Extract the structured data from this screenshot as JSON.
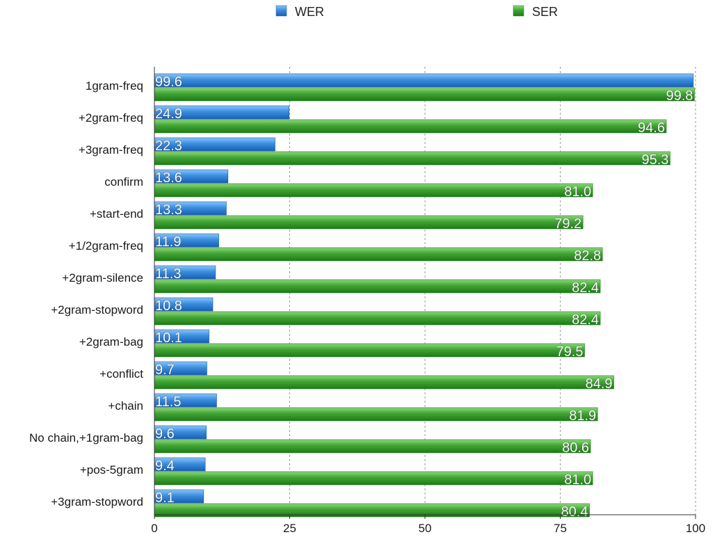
{
  "chart_data": {
    "type": "bar",
    "orientation": "horizontal",
    "categories": [
      "1gram-freq",
      "+2gram-freq",
      "+3gram-freq",
      "confirm",
      "+start-end",
      "+1/2gram-freq",
      "+2gram-silence",
      "+2gram-stopword",
      "+2gram-bag",
      "+conflict",
      "+chain",
      "No chain,+1gram-bag",
      "+pos-5gram",
      "+3gram-stopword"
    ],
    "series": [
      {
        "name": "WER",
        "color": "#2f7fd6",
        "values": [
          99.6,
          24.9,
          22.3,
          13.6,
          13.3,
          11.9,
          11.3,
          10.8,
          10.1,
          9.7,
          11.5,
          9.6,
          9.4,
          9.1
        ],
        "labels": [
          "99.6",
          "24.9",
          "22.3",
          "13.6",
          "13.3",
          "11.9",
          "11.3",
          "10.8",
          "10.1",
          "9.7",
          "11.5",
          "9.6",
          "9.4",
          "9.1"
        ]
      },
      {
        "name": "SER",
        "color": "#3a9a2e",
        "values": [
          99.8,
          94.6,
          95.3,
          81.0,
          79.2,
          82.8,
          82.4,
          82.4,
          79.5,
          84.9,
          81.9,
          80.6,
          81.0,
          80.4
        ],
        "labels": [
          "99.8",
          "94.6",
          "95.3",
          "81.0",
          "79.2",
          "82.8",
          "82.4",
          "82.4",
          "79.5",
          "84.9",
          "81.9",
          "80.6",
          "81.0",
          "80.4"
        ]
      }
    ],
    "xlim": [
      0,
      100
    ],
    "xticks": [
      "0",
      "25",
      "50",
      "75",
      "100"
    ],
    "grid": true,
    "legend_position": "top"
  }
}
